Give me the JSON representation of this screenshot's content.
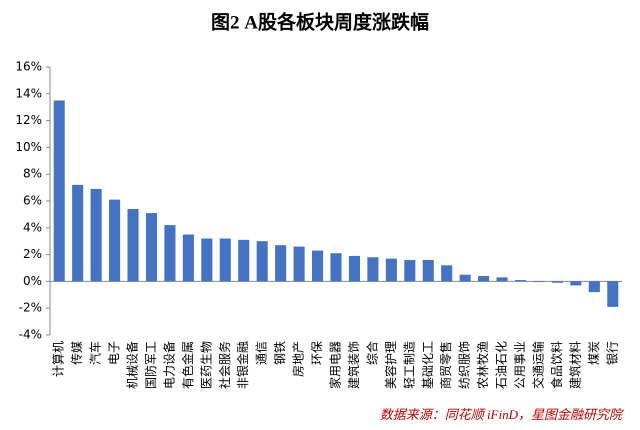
{
  "chart_data": {
    "type": "bar",
    "title": "图2  A股各板块周度涨跌幅",
    "categories": [
      "计算机",
      "传媒",
      "汽车",
      "电子",
      "机械设备",
      "国防军工",
      "电力设备",
      "有色金属",
      "医药生物",
      "社会服务",
      "非银金融",
      "通信",
      "钢铁",
      "房地产",
      "环保",
      "家用电器",
      "建筑装饰",
      "综合",
      "美容护理",
      "轻工制造",
      "基础化工",
      "商贸零售",
      "纺织服饰",
      "农林牧渔",
      "石油石化",
      "公用事业",
      "交通运输",
      "食品饮料",
      "建筑材料",
      "煤炭",
      "银行"
    ],
    "values": [
      13.5,
      7.2,
      6.9,
      6.1,
      5.4,
      5.1,
      4.2,
      3.5,
      3.2,
      3.2,
      3.1,
      3.0,
      2.7,
      2.6,
      2.3,
      2.1,
      1.9,
      1.8,
      1.7,
      1.6,
      1.6,
      1.2,
      0.5,
      0.4,
      0.3,
      0.1,
      -0.05,
      -0.1,
      -0.3,
      -0.8,
      -1.9
    ],
    "color": "#4472c4",
    "ylim": [
      -4,
      16
    ],
    "yticks": [
      {
        "value": -4,
        "label": "-4%"
      },
      {
        "value": -2,
        "label": "-2%"
      },
      {
        "value": 0,
        "label": "0%"
      },
      {
        "value": 2,
        "label": "2%"
      },
      {
        "value": 4,
        "label": "4%"
      },
      {
        "value": 6,
        "label": "6%"
      },
      {
        "value": 8,
        "label": "8%"
      },
      {
        "value": 10,
        "label": "10%"
      },
      {
        "value": 12,
        "label": "12%"
      },
      {
        "value": 14,
        "label": "14%"
      },
      {
        "value": 16,
        "label": "16%"
      }
    ],
    "grid": false,
    "source": "数据来源：同花顺 iFinD，星图金融研究院"
  }
}
